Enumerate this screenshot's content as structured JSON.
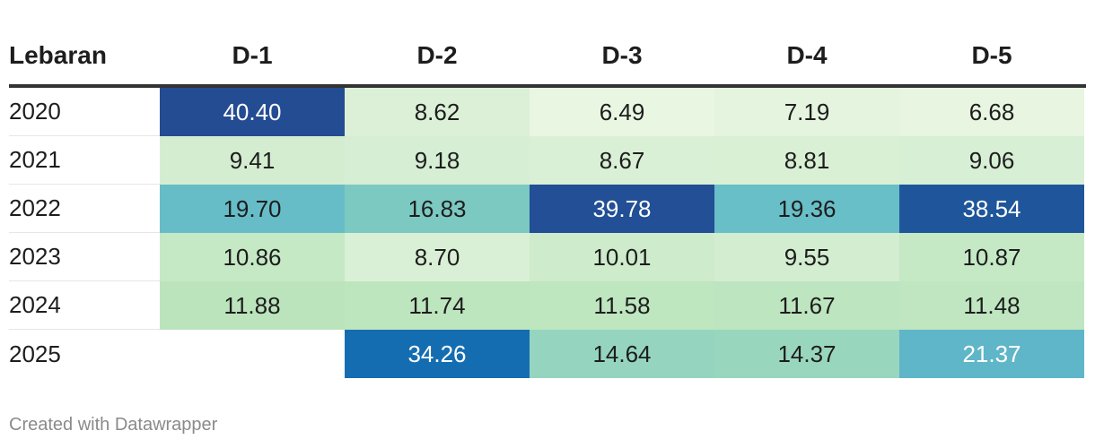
{
  "chart_data": {
    "type": "heatmap",
    "row_header_label": "Lebaran",
    "columns": [
      "D-1",
      "D-2",
      "D-3",
      "D-4",
      "D-5"
    ],
    "rows": [
      {
        "label": "2020",
        "values": [
          "40.40",
          "8.62",
          "6.49",
          "7.19",
          "6.68"
        ]
      },
      {
        "label": "2021",
        "values": [
          "9.41",
          "9.18",
          "8.67",
          "8.81",
          "9.06"
        ]
      },
      {
        "label": "2022",
        "values": [
          "19.70",
          "16.83",
          "39.78",
          "19.36",
          "38.54"
        ]
      },
      {
        "label": "2023",
        "values": [
          "10.86",
          "8.70",
          "10.01",
          "9.55",
          "10.87"
        ]
      },
      {
        "label": "2024",
        "values": [
          "11.88",
          "11.74",
          "11.58",
          "11.67",
          "11.48"
        ]
      },
      {
        "label": "2025",
        "values": [
          "",
          "34.26",
          "14.64",
          "14.37",
          "21.37"
        ]
      }
    ]
  },
  "footer": "Created with Datawrapper"
}
